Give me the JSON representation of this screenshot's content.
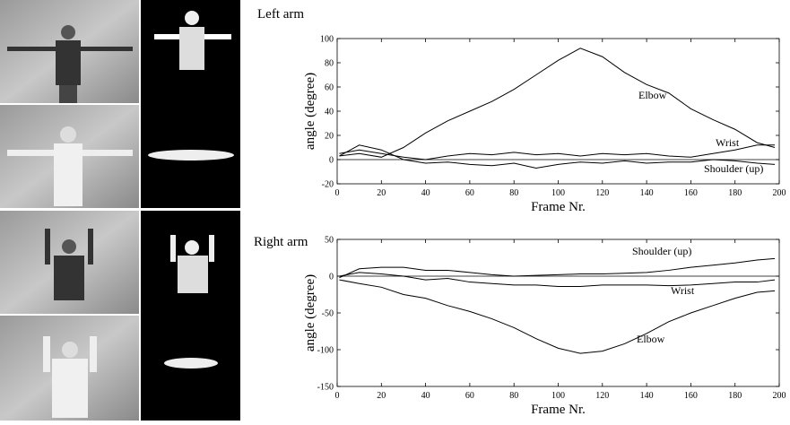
{
  "chart_data": [
    {
      "type": "line",
      "title": "Left arm",
      "xlabel": "Frame Nr.",
      "ylabel": "angle (degree)",
      "x": [
        1,
        10,
        20,
        30,
        40,
        50,
        60,
        70,
        80,
        90,
        100,
        110,
        120,
        130,
        140,
        150,
        160,
        170,
        180,
        190,
        198
      ],
      "series": [
        {
          "name": "Elbow",
          "color": "#000000",
          "values": [
            3,
            5,
            2,
            10,
            22,
            32,
            40,
            48,
            58,
            70,
            82,
            92,
            85,
            72,
            62,
            55,
            42,
            33,
            25,
            14,
            10
          ]
        },
        {
          "name": "Wrist",
          "color": "#000000",
          "values": [
            5,
            8,
            5,
            2,
            0,
            3,
            5,
            4,
            6,
            4,
            5,
            3,
            5,
            4,
            5,
            3,
            2,
            5,
            8,
            12,
            12
          ]
        },
        {
          "name": "Shoulder (up)",
          "color": "#000000",
          "values": [
            3,
            12,
            8,
            0,
            -3,
            -2,
            -4,
            -5,
            -3,
            -7,
            -4,
            -2,
            -3,
            -1,
            -3,
            -2,
            -2,
            0,
            -1,
            -3,
            -4
          ]
        }
      ],
      "xlim": [
        0,
        200
      ],
      "xticks": [
        0,
        20,
        40,
        60,
        80,
        100,
        120,
        140,
        160,
        180,
        200
      ],
      "ylim": [
        -20,
        100
      ],
      "yticks": [
        -20,
        0,
        20,
        40,
        60,
        80,
        100
      ]
    },
    {
      "type": "line",
      "title": "Right arm",
      "xlabel": "Frame Nr.",
      "ylabel": "angle (degree)",
      "x": [
        1,
        10,
        20,
        30,
        40,
        50,
        60,
        70,
        80,
        90,
        100,
        110,
        120,
        130,
        140,
        150,
        160,
        170,
        180,
        190,
        198
      ],
      "series": [
        {
          "name": "Shoulder (up)",
          "color": "#000000",
          "values": [
            -2,
            10,
            12,
            12,
            8,
            8,
            5,
            2,
            0,
            1,
            2,
            3,
            3,
            4,
            5,
            8,
            12,
            15,
            18,
            22,
            24
          ]
        },
        {
          "name": "Wrist",
          "color": "#000000",
          "values": [
            0,
            5,
            3,
            0,
            -5,
            -3,
            -8,
            -10,
            -12,
            -12,
            -14,
            -14,
            -12,
            -12,
            -12,
            -13,
            -12,
            -10,
            -8,
            -8,
            -5
          ]
        },
        {
          "name": "Elbow",
          "color": "#000000",
          "values": [
            -5,
            -10,
            -15,
            -25,
            -30,
            -40,
            -48,
            -58,
            -70,
            -85,
            -98,
            -105,
            -102,
            -92,
            -78,
            -62,
            -50,
            -40,
            -30,
            -22,
            -20
          ]
        }
      ],
      "xlim": [
        0,
        200
      ],
      "xticks": [
        0,
        20,
        40,
        60,
        80,
        100,
        120,
        140,
        160,
        180,
        200
      ],
      "ylim": [
        -150,
        50
      ],
      "yticks": [
        -150,
        -100,
        -50,
        0,
        50
      ]
    }
  ]
}
